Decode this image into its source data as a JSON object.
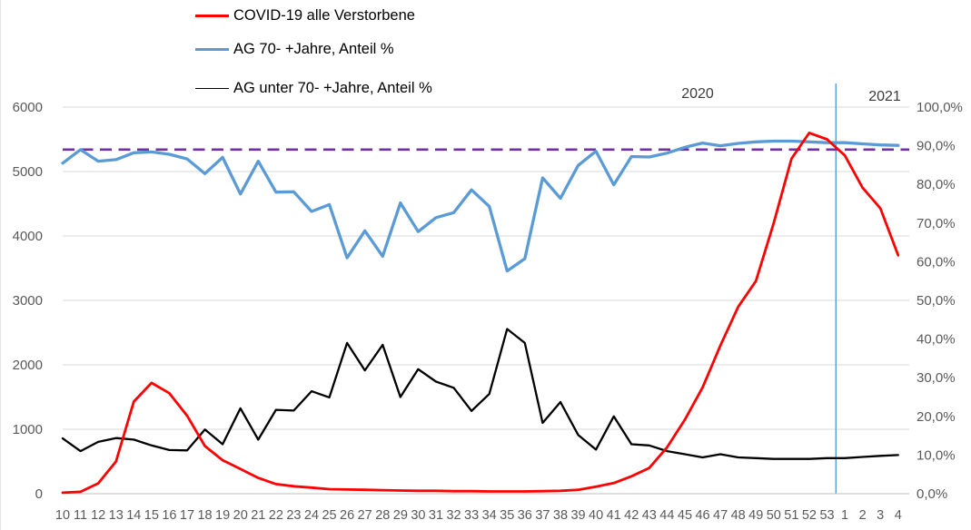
{
  "chart_data": {
    "type": "line",
    "x_labels": [
      "10",
      "11",
      "12",
      "13",
      "14",
      "15",
      "16",
      "17",
      "18",
      "19",
      "20",
      "21",
      "22",
      "23",
      "24",
      "25",
      "26",
      "27",
      "28",
      "29",
      "30",
      "31",
      "32",
      "33",
      "34",
      "35",
      "36",
      "37",
      "38",
      "39",
      "40",
      "41",
      "42",
      "43",
      "44",
      "45",
      "46",
      "47",
      "48",
      "49",
      "50",
      "51",
      "52",
      "53",
      "1",
      "2",
      "3",
      "4"
    ],
    "x_axis_note": "calendar weeks; weeks 10-53 belong to 2020, weeks 1-4 to 2021",
    "annotations": {
      "left_year": "2020",
      "right_year": "2021"
    },
    "left_axis": {
      "min": 0,
      "max": 6000,
      "tick_step": 1000,
      "tick_labels": [
        "0",
        "1000",
        "2000",
        "3000",
        "4000",
        "5000",
        "6000"
      ]
    },
    "right_axis": {
      "min": 0,
      "max": 100,
      "tick_step": 10,
      "tick_labels": [
        "0,0%",
        "10,0%",
        "20,0%",
        "30,0%",
        "40,0%",
        "50,0%",
        "60,0%",
        "70,0%",
        "80,0%",
        "90,0%",
        "100,0%"
      ]
    },
    "grid": "horizontal",
    "legend_position": "top-left",
    "series": [
      {
        "name": "COVID-19 alle Verstorbene",
        "color": "#ff0000",
        "axis": "left",
        "values": [
          15,
          30,
          160,
          500,
          1430,
          1720,
          1560,
          1210,
          740,
          520,
          385,
          245,
          150,
          115,
          95,
          70,
          65,
          60,
          55,
          50,
          45,
          45,
          40,
          40,
          35,
          35,
          35,
          40,
          45,
          60,
          110,
          165,
          270,
          400,
          720,
          1150,
          1650,
          2300,
          2900,
          3300,
          4200,
          5200,
          5600,
          5500,
          5250,
          4750,
          4430,
          3700
        ]
      },
      {
        "name": "AG 70- +Jahre, Anteil %",
        "color": "#5b9bd5",
        "axis": "right",
        "values": [
          85.5,
          89.0,
          86.0,
          86.4,
          88.2,
          88.4,
          87.8,
          86.6,
          82.8,
          87.0,
          77.5,
          86.0,
          78.0,
          78.1,
          73.0,
          74.8,
          61.0,
          68.0,
          61.4,
          75.2,
          67.8,
          71.4,
          72.7,
          78.6,
          74.3,
          57.6,
          60.8,
          81.7,
          76.4,
          84.9,
          88.6,
          79.9,
          87.2,
          87.1,
          88.1,
          89.6,
          90.7,
          90.0,
          90.6,
          91.0,
          91.2,
          91.2,
          91.0,
          90.8,
          90.8,
          90.5,
          90.2,
          90.1
        ]
      },
      {
        "name": "AG unter 70- +Jahre, Anteil %",
        "color": "#000000",
        "axis": "right",
        "values": [
          14.3,
          11.0,
          13.4,
          14.4,
          14.0,
          12.5,
          11.3,
          11.2,
          16.6,
          12.8,
          22.1,
          14.0,
          21.7,
          21.5,
          26.5,
          24.9,
          39.0,
          31.9,
          38.5,
          25.0,
          32.2,
          29.0,
          27.4,
          21.4,
          25.8,
          42.6,
          39.0,
          18.3,
          23.7,
          15.2,
          11.4,
          20.0,
          12.8,
          12.5,
          11.0,
          10.2,
          9.4,
          10.2,
          9.4,
          9.2,
          9.0,
          9.0,
          9.0,
          9.2,
          9.2,
          9.5,
          9.8,
          10.0
        ]
      }
    ],
    "reference_line": {
      "axis": "right",
      "value": 89.0,
      "color": "#7030a0",
      "style": "dashed"
    },
    "separator_line": {
      "between_x_labels": [
        "53",
        "1"
      ],
      "color": "#5b9bd5",
      "meaning": "boundary 2020 / 2021"
    },
    "colors": {
      "gridline": "#d9d9d9",
      "axis_line": "#bfbfbf",
      "tick_text": "#595959"
    }
  }
}
